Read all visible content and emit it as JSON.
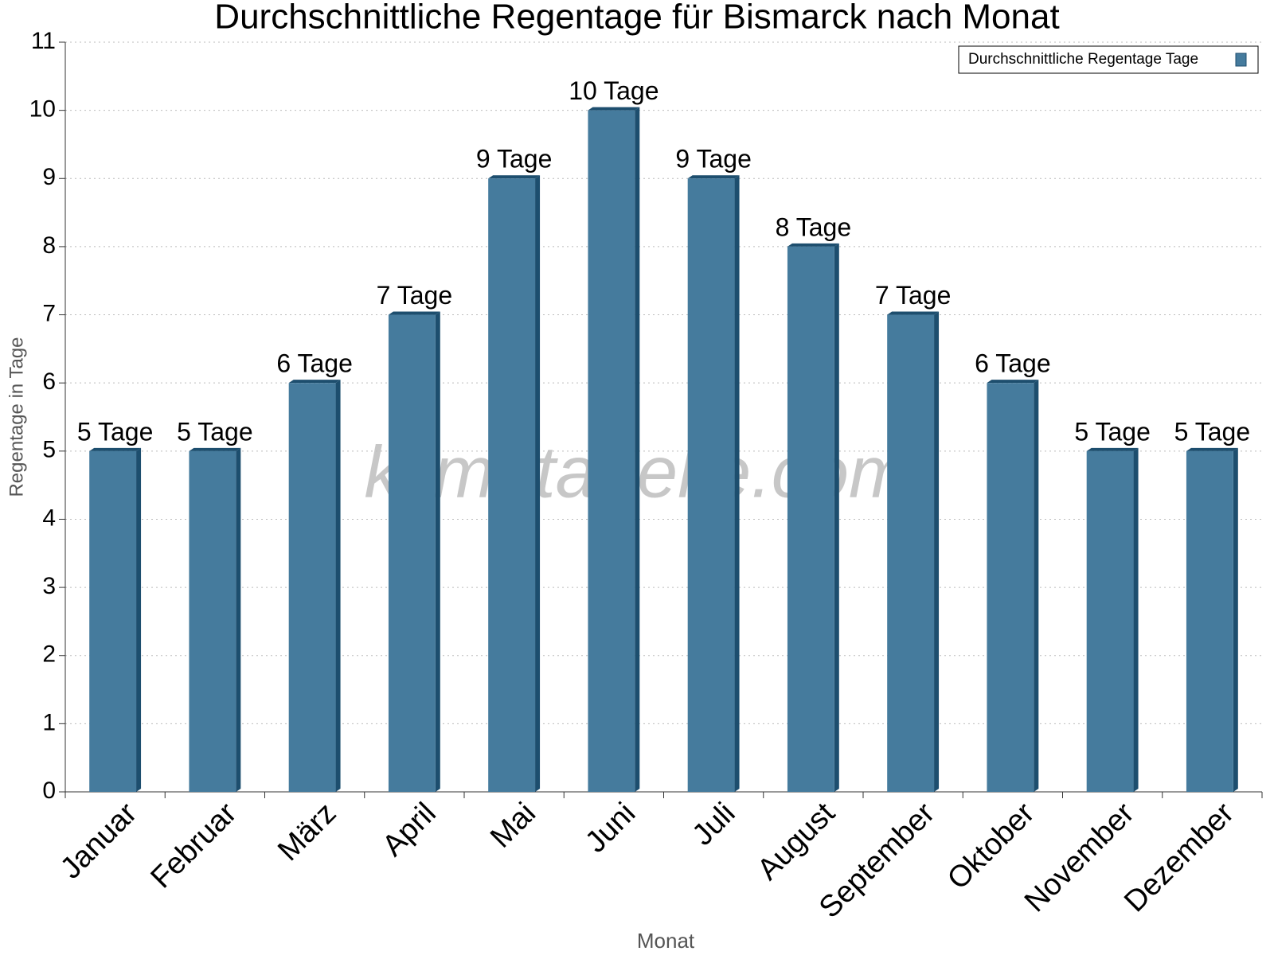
{
  "chart_data": {
    "type": "bar",
    "title": "Durchschnittliche Regentage für Bismarck nach Monat",
    "watermark": "klimatabelle.com",
    "x_label": "Monat",
    "y_label": "Regentage in Tage",
    "categories": [
      "Januar",
      "Februar",
      "März",
      "April",
      "Mai",
      "Juni",
      "Juli",
      "August",
      "September",
      "Oktober",
      "November",
      "Dezember"
    ],
    "series": [
      {
        "name": "Durchschnittliche Regentage Tage",
        "color": "#457b9d",
        "values": [
          5,
          5,
          6,
          7,
          9,
          10,
          9,
          8,
          7,
          6,
          5,
          5
        ],
        "value_labels": [
          "5 Tage",
          "5 Tage",
          "6 Tage",
          "7 Tage",
          "9 Tage",
          "10 Tage",
          "9 Tage",
          "8 Tage",
          "7 Tage",
          "6 Tage",
          "5 Tage",
          "5 Tage"
        ]
      }
    ],
    "ylim": [
      0,
      11
    ],
    "yticks": [
      0,
      1,
      2,
      3,
      4,
      5,
      6,
      7,
      8,
      9,
      10,
      11
    ],
    "grid": true,
    "legend": "top-right"
  }
}
